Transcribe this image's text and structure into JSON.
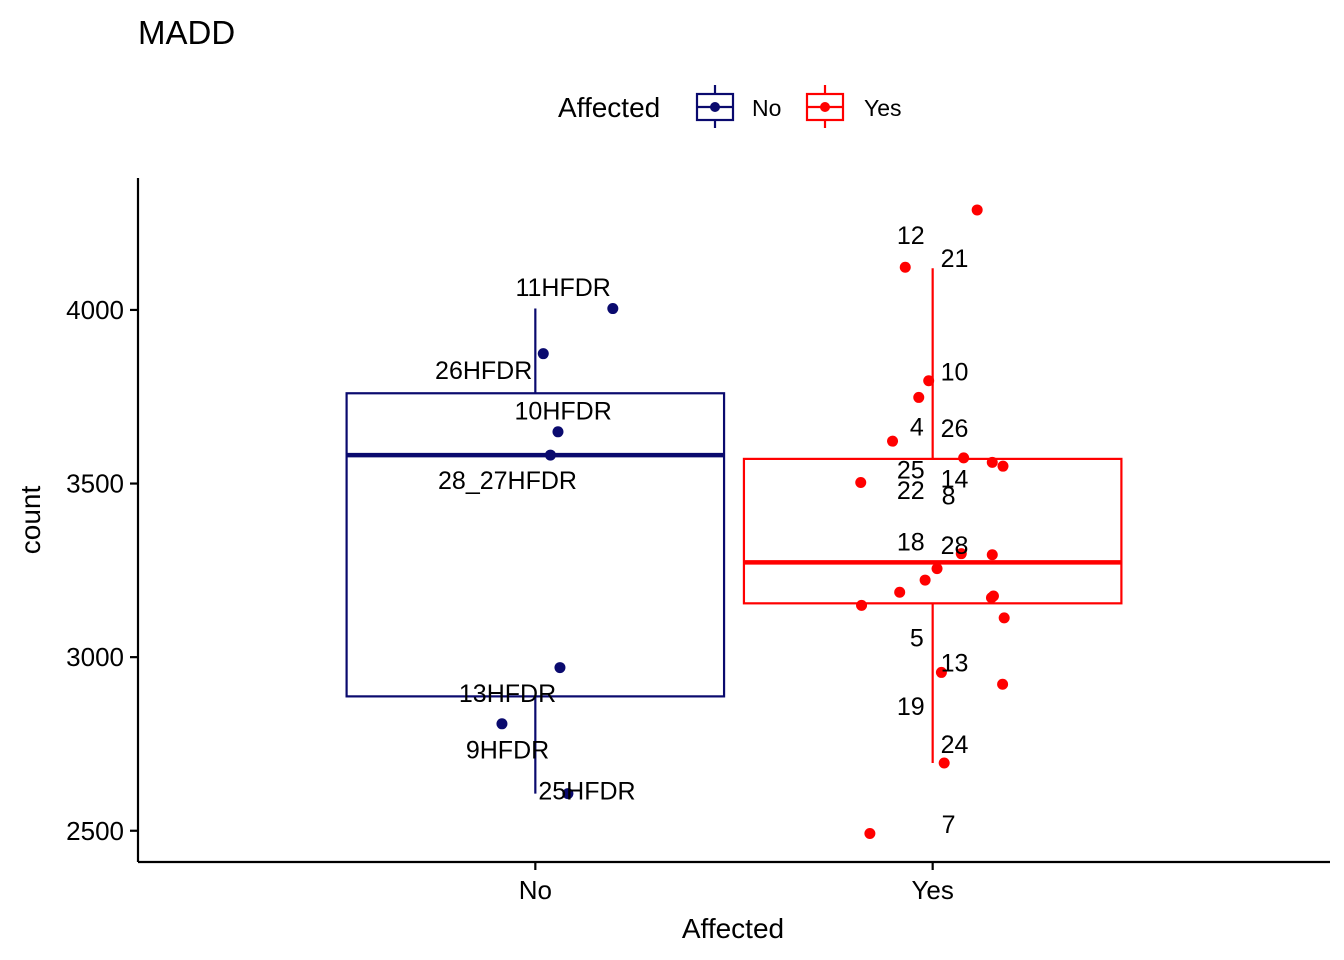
{
  "chart_data": {
    "type": "box",
    "title": "MADD",
    "xlabel": "Affected",
    "ylabel": "count",
    "ylim": [
      2410,
      4380
    ],
    "yticks": [
      2500,
      3000,
      3500,
      4000
    ],
    "categories": [
      "No",
      "Yes"
    ],
    "legend": {
      "title": "Affected",
      "position": "top",
      "entries": [
        {
          "label": "No",
          "color": "#0a0a6e"
        },
        {
          "label": "Yes",
          "color": "#ff0000"
        }
      ]
    },
    "series": [
      {
        "name": "No",
        "color": "#0a0a6e",
        "box": {
          "whisker_low": 2607,
          "q1": 2887,
          "median": 3582,
          "q3": 3760,
          "whisker_high": 4004
        },
        "points": [
          {
            "xoff": 0.195,
            "y": 4004,
            "label": "11HFDR",
            "lx": 0.07,
            "ly": 4066
          },
          {
            "xoff": 0.02,
            "y": 3874,
            "label": "26HFDR",
            "lx": -0.13,
            "ly": 3827
          },
          {
            "xoff": 0.057,
            "y": 3649,
            "label": "10HFDR",
            "lx": 0.07,
            "ly": 3710
          },
          {
            "xoff": 0.038,
            "y": 3582,
            "label": "28_27HFDR",
            "lx": -0.07,
            "ly": 3510
          },
          {
            "xoff": 0.062,
            "y": 2970,
            "label": "13HFDR",
            "lx": -0.07,
            "ly": 2897
          },
          {
            "xoff": -0.084,
            "y": 2808,
            "label": "9HFDR",
            "lx": -0.07,
            "ly": 2734
          },
          {
            "xoff": 0.082,
            "y": 2607,
            "label": "25HFDR",
            "lx": 0.13,
            "ly": 2616
          }
        ]
      },
      {
        "name": "Yes",
        "color": "#ff0000",
        "box": {
          "whisker_low": 2695,
          "q1": 3155,
          "median": 3273,
          "q3": 3571,
          "whisker_high": 4120
        },
        "points": [
          {
            "xoff": 0.112,
            "y": 4288,
            "label": "",
            "lx": 0,
            "ly": 0
          },
          {
            "xoff": -0.069,
            "y": 4123,
            "label": "12",
            "lx": -0.055,
            "ly": 4216
          },
          {
            "xoff": -0.01,
            "y": 3796,
            "label": "21",
            "lx": 0.055,
            "ly": 4150
          },
          {
            "xoff": -0.035,
            "y": 3748,
            "label": "10",
            "lx": 0.055,
            "ly": 3823
          },
          {
            "xoff": -0.101,
            "y": 3622,
            "label": "4",
            "lx": -0.04,
            "ly": 3664
          },
          {
            "xoff": 0.078,
            "y": 3574,
            "label": "26",
            "lx": 0.055,
            "ly": 3660
          },
          {
            "xoff": 0.15,
            "y": 3561,
            "label": "25",
            "lx": -0.055,
            "ly": 3540
          },
          {
            "xoff": 0.177,
            "y": 3550,
            "label": "14",
            "lx": 0.055,
            "ly": 3515
          },
          {
            "xoff": -0.181,
            "y": 3503,
            "label": "22",
            "lx": -0.055,
            "ly": 3481
          },
          {
            "xoff": 0.15,
            "y": 3295,
            "label": "8",
            "lx": 0.04,
            "ly": 3465
          },
          {
            "xoff": 0.072,
            "y": 3298,
            "label": "18",
            "lx": -0.055,
            "ly": 3333
          },
          {
            "xoff": 0.011,
            "y": 3255,
            "label": "28",
            "lx": 0.055,
            "ly": 3323
          },
          {
            "xoff": -0.019,
            "y": 3222,
            "label": "",
            "lx": 0,
            "ly": 0
          },
          {
            "xoff": -0.083,
            "y": 3187,
            "label": "",
            "lx": 0,
            "ly": 0
          },
          {
            "xoff": 0.153,
            "y": 3176,
            "label": "",
            "lx": 0,
            "ly": 0
          },
          {
            "xoff": 0.148,
            "y": 3171,
            "label": "",
            "lx": 0,
            "ly": 0
          },
          {
            "xoff": -0.179,
            "y": 3149,
            "label": "",
            "lx": 0,
            "ly": 0
          },
          {
            "xoff": 0.18,
            "y": 3113,
            "label": "5",
            "lx": -0.04,
            "ly": 3057
          },
          {
            "xoff": 0.022,
            "y": 2956,
            "label": "13",
            "lx": 0.055,
            "ly": 2984
          },
          {
            "xoff": 0.176,
            "y": 2922,
            "label": "19",
            "lx": -0.055,
            "ly": 2860
          },
          {
            "xoff": 0.029,
            "y": 2695,
            "label": "24",
            "lx": 0.055,
            "ly": 2750
          },
          {
            "xoff": -0.158,
            "y": 2492,
            "label": "7",
            "lx": 0.04,
            "ly": 2520
          }
        ]
      }
    ]
  }
}
